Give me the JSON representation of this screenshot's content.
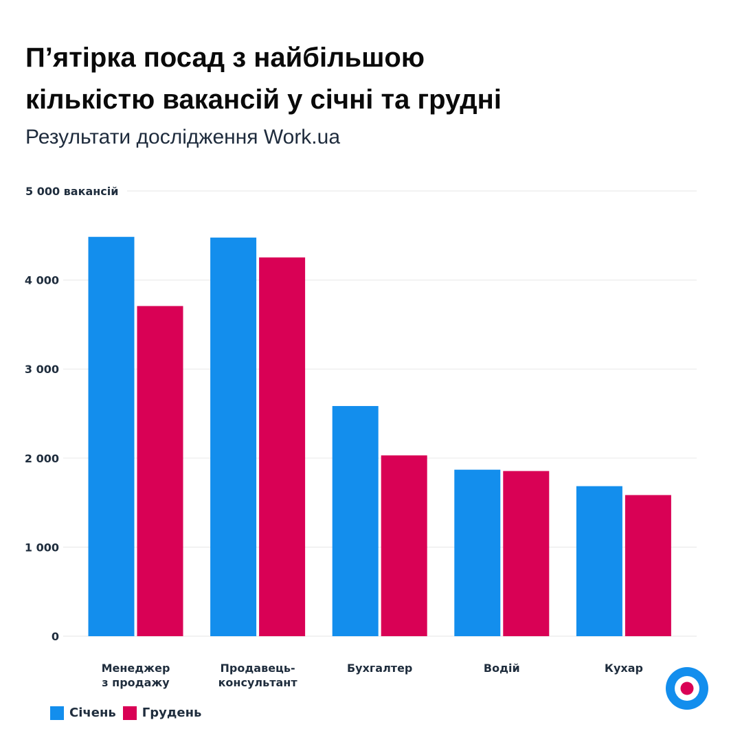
{
  "header": {
    "title_line1": "П’ятірка посад з найбільшою",
    "title_line2": "кількістю вакансій у січні та грудні",
    "subtitle": "Результати дослідження Work.ua"
  },
  "colors": {
    "january": "#138eed",
    "december": "#d90155",
    "grid": "#ebebeb",
    "text": "#1f2d3d"
  },
  "chart_data": {
    "type": "bar",
    "title": "П’ятірка посад з найбільшою кількістю вакансій у січні та грудні",
    "subtitle": "Результати дослідження Work.ua",
    "xlabel": "",
    "ylabel": "вакансій",
    "ylim": [
      0,
      5000
    ],
    "grid": true,
    "y_ticks": [
      {
        "value": 0,
        "label": "0"
      },
      {
        "value": 1000,
        "label": "1 000"
      },
      {
        "value": 2000,
        "label": "2 000"
      },
      {
        "value": 3000,
        "label": "3 000"
      },
      {
        "value": 4000,
        "label": "4 000"
      },
      {
        "value": 5000,
        "label": "5 000 вакансій"
      }
    ],
    "categories": [
      [
        "Менеджер",
        "з продажу"
      ],
      [
        "Продавець-",
        "консультант"
      ],
      [
        "Бухгалтер"
      ],
      [
        "Водій"
      ],
      [
        "Кухар"
      ]
    ],
    "series": [
      {
        "name": "Січень",
        "color": "#138eed",
        "values": [
          4485,
          4477,
          2585,
          1870,
          1685
        ]
      },
      {
        "name": "Грудень",
        "color": "#d90155",
        "values": [
          3708,
          4254,
          2031,
          1855,
          1585
        ]
      }
    ],
    "legend_position": "bottom-left"
  },
  "legend": {
    "items": [
      {
        "label": "Січень",
        "color": "#138eed"
      },
      {
        "label": "Грудень",
        "color": "#d90155"
      }
    ]
  },
  "logo": {
    "name": "work-ua-logo"
  }
}
